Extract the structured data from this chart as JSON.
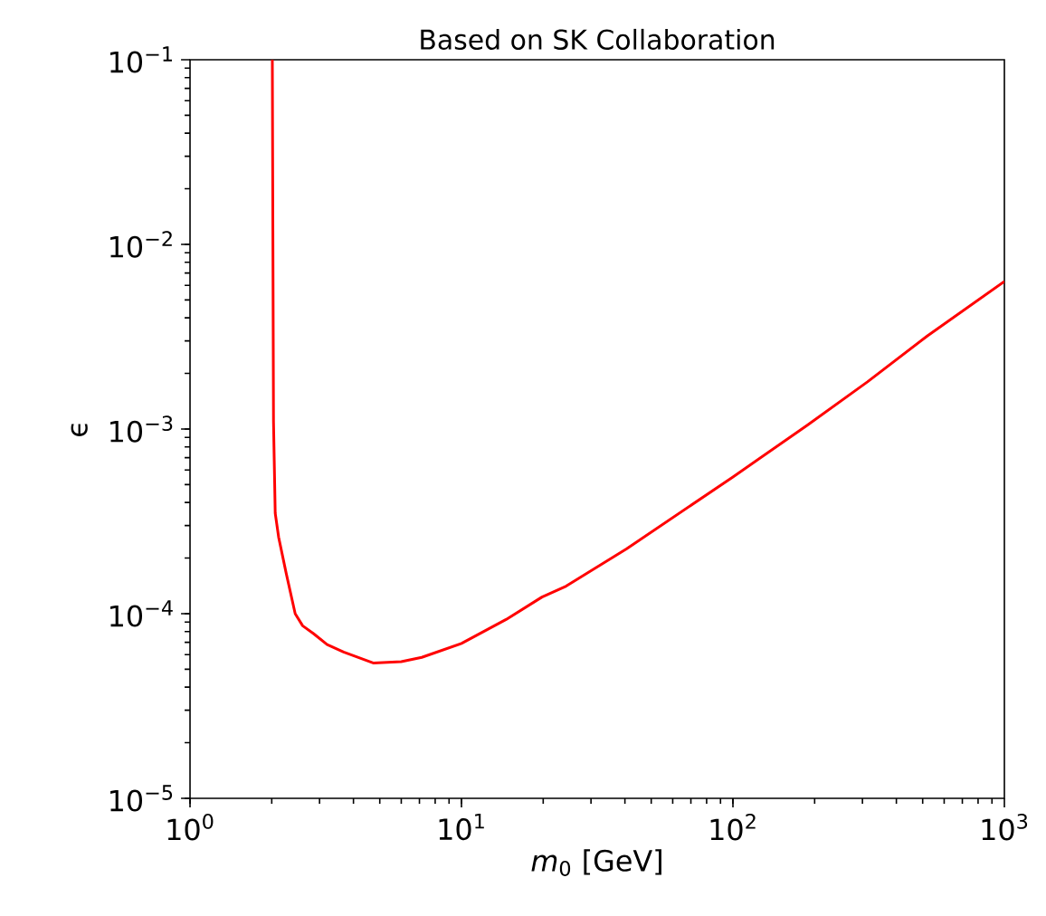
{
  "chart_data": {
    "type": "line",
    "title": "Based on SK Collaboration",
    "xlabel": "*m*$_{0}$ [GeV]",
    "ylabel": "ϵ",
    "log": "xy",
    "grid": false,
    "marker": "none",
    "line_style": "solid",
    "xlim": [
      1,
      1000
    ],
    "ylim": [
      1e-05,
      0.1
    ],
    "xticks": [
      {
        "value": 1,
        "label": "10$^{0}$"
      },
      {
        "value": 10,
        "label": "10$^{1}$"
      },
      {
        "value": 100,
        "label": "10$^{2}$"
      },
      {
        "value": 1000,
        "label": "10$^{3}$"
      }
    ],
    "yticks": [
      {
        "value": 1e-05,
        "label": "10$^{−5}$"
      },
      {
        "value": 0.0001,
        "label": "10$^{−4}$"
      },
      {
        "value": 0.001,
        "label": "10$^{−3}$"
      },
      {
        "value": 0.01,
        "label": "10$^{−2}$"
      },
      {
        "value": 0.1,
        "label": "10$^{−1}$"
      }
    ],
    "series": [
      {
        "color": "#ff0000",
        "x": [
          2.01,
          2.02,
          2.03,
          2.06,
          2.12,
          2.26,
          2.44,
          2.6,
          2.85,
          3.2,
          3.68,
          4.75,
          6,
          7.14,
          10,
          14.6,
          19.8,
          24.3,
          40.5,
          100,
          188,
          313,
          521,
          1000
        ],
        "values": [
          0.1,
          0.01,
          0.0011,
          0.00035,
          0.00026,
          0.000166,
          0.0001,
          8.6e-05,
          7.8e-05,
          6.8e-05,
          6.2e-05,
          5.4e-05,
          5.5e-05,
          5.8e-05,
          6.9e-05,
          9.3e-05,
          0.000123,
          0.000141,
          0.000224,
          0.00055,
          0.00105,
          0.0018,
          0.0032,
          0.0063
        ]
      }
    ]
  }
}
